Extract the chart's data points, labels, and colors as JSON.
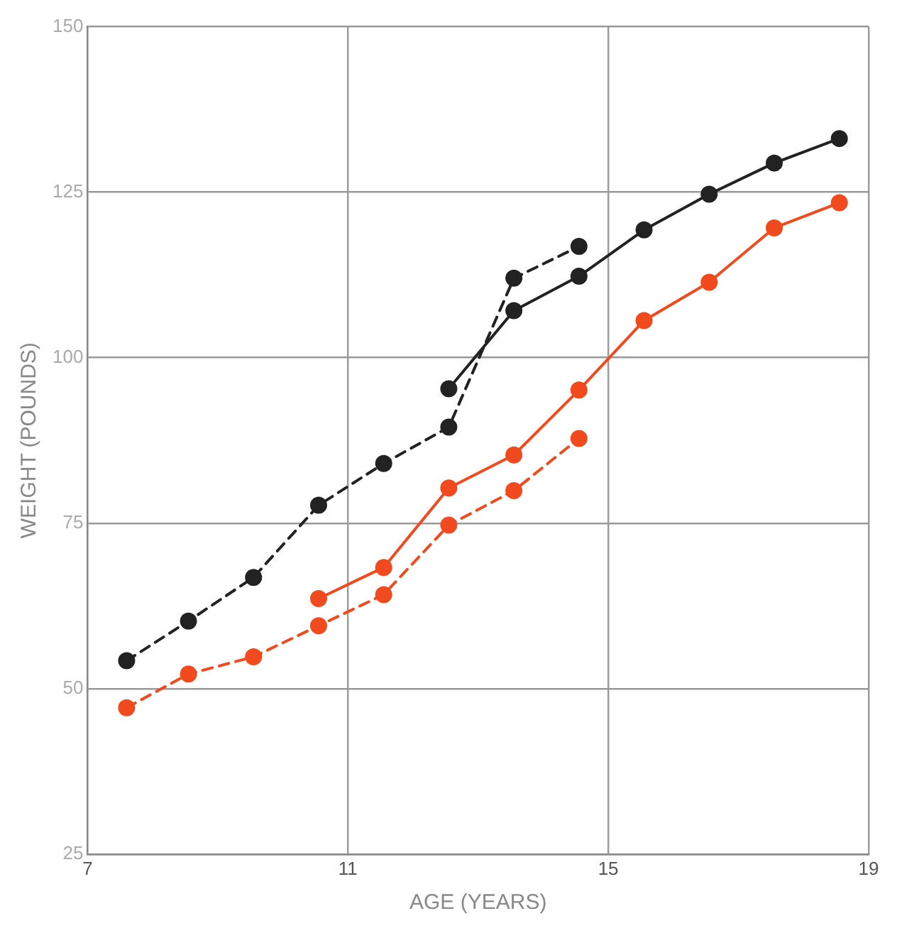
{
  "chart_data": {
    "type": "line",
    "xlabel": "AGE (YEARS)",
    "ylabel": "WEIGHT (POUNDS)",
    "xlim": [
      7,
      19
    ],
    "xticks": [
      7,
      11,
      15,
      19
    ],
    "ylim": [
      25,
      150
    ],
    "yticks": [
      25,
      50,
      75,
      100,
      125,
      150
    ],
    "grid": true,
    "legend": false,
    "marker": "circle",
    "series": [
      {
        "color": "#222222",
        "line_style": "dashed",
        "x": [
          7.6,
          8.55,
          9.55,
          10.55,
          11.55,
          12.55,
          13.55,
          14.55
        ],
        "values": [
          54.2,
          60.2,
          66.8,
          77.7,
          84.0,
          89.5,
          112.0,
          116.8
        ]
      },
      {
        "color": "#222222",
        "line_style": "solid",
        "x": [
          12.55,
          13.55,
          14.55,
          15.55,
          16.55,
          17.55,
          18.55
        ],
        "values": [
          95.3,
          107.1,
          112.3,
          119.3,
          124.7,
          129.4,
          133.1
        ]
      },
      {
        "color": "#f04a1e",
        "line_style": "dashed",
        "x": [
          7.6,
          8.55,
          9.55,
          10.55,
          11.55,
          12.55,
          13.55,
          14.55
        ],
        "values": [
          47.1,
          52.2,
          54.8,
          59.5,
          64.2,
          74.7,
          79.9,
          87.8
        ]
      },
      {
        "color": "#f04a1e",
        "line_style": "solid",
        "x": [
          10.55,
          11.55,
          12.55,
          13.55,
          14.55,
          15.55,
          16.55,
          17.55,
          18.55
        ],
        "values": [
          63.6,
          68.3,
          80.3,
          85.3,
          95.1,
          105.6,
          111.4,
          119.6,
          123.4
        ]
      }
    ]
  }
}
